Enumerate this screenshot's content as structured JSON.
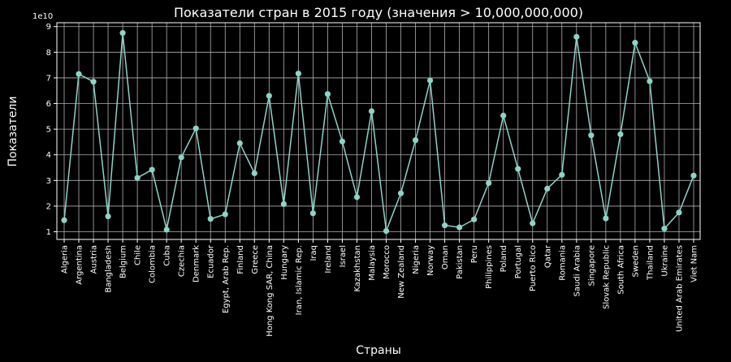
{
  "chart_data": {
    "type": "line",
    "title": "Показатели стран в 2015 году (значения > 10,000,000,000)",
    "xlabel": "Страны",
    "ylabel": "Показатели",
    "y_offset_label": "1e10",
    "ylim": [
      0.7,
      9.15
    ],
    "y_ticks": [
      1,
      2,
      3,
      4,
      5,
      6,
      7,
      8,
      9
    ],
    "grid": true,
    "line_color": "#8dd3c7",
    "background_color": "#000000",
    "categories": [
      "Algeria",
      "Argentina",
      "Austria",
      "Bangladesh",
      "Belgium",
      "Chile",
      "Colombia",
      "Cuba",
      "Czechia",
      "Denmark",
      "Ecuador",
      "Egypt, Arab Rep.",
      "Finland",
      "Greece",
      "Hong Kong SAR, China",
      "Hungary",
      "Iran, Islamic Rep.",
      "Iraq",
      "Ireland",
      "Israel",
      "Kazakhstan",
      "Malaysia",
      "Morocco",
      "New Zealand",
      "Nigeria",
      "Norway",
      "Oman",
      "Pakistan",
      "Peru",
      "Philippines",
      "Poland",
      "Portugal",
      "Puerto Rico",
      "Qatar",
      "Romania",
      "Saudi Arabia",
      "Singapore",
      "Slovak Republic",
      "South Africa",
      "Sweden",
      "Thailand",
      "Ukraine",
      "United Arab Emirates",
      "Viet Nam"
    ],
    "values": [
      1.45,
      7.15,
      6.85,
      1.6,
      8.75,
      3.1,
      3.42,
      1.08,
      3.9,
      5.03,
      1.5,
      1.68,
      4.45,
      3.28,
      6.3,
      2.08,
      7.17,
      1.72,
      6.37,
      4.52,
      2.35,
      5.7,
      1.03,
      2.5,
      4.57,
      6.9,
      1.25,
      1.17,
      1.48,
      2.9,
      5.53,
      3.45,
      1.33,
      2.68,
      3.22,
      8.6,
      4.76,
      1.52,
      4.8,
      8.37,
      6.87,
      1.12,
      1.75,
      3.19
    ]
  }
}
